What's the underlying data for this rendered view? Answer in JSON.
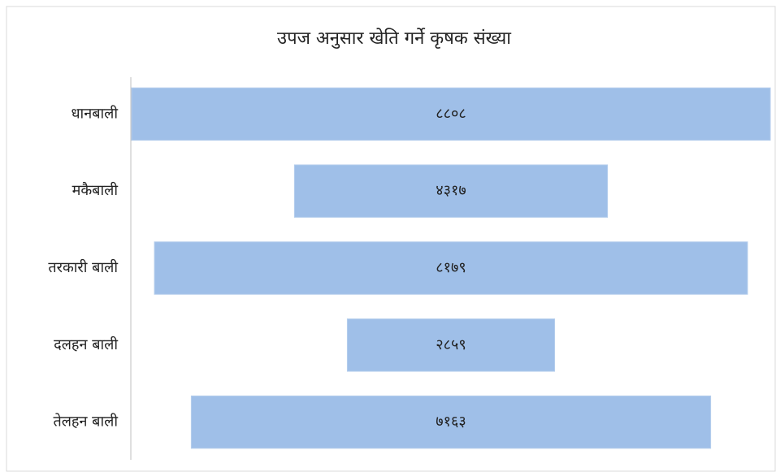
{
  "chart_data": {
    "type": "funnel",
    "title": "उपज अनुसार खेति गर्ने कृषक संख्या",
    "categories": [
      "धानबाली",
      "मकैबाली",
      "तरकारी बाली",
      "दलहन बाली",
      "तेलहन बाली"
    ],
    "values": [
      8808,
      4317,
      8179,
      2859,
      7163
    ],
    "value_labels": [
      "८८०८",
      "४३१७",
      "८१७९",
      "२८५९",
      "७१६३"
    ],
    "color": "#9fbfe8"
  }
}
